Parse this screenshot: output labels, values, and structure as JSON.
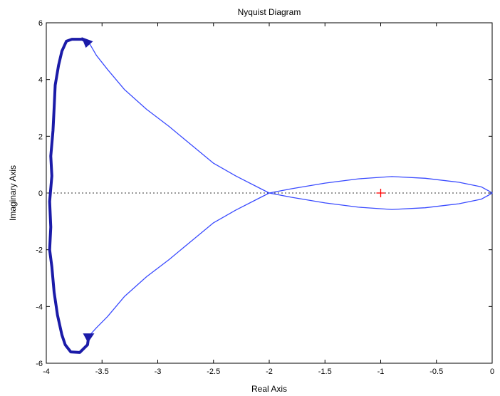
{
  "chart_data": {
    "type": "line",
    "title": "Nyquist Diagram",
    "xlabel": "Real Axis",
    "ylabel": "Imaginary Axis",
    "xlim": [
      -4,
      0
    ],
    "ylim": [
      -6,
      6
    ],
    "grid": false,
    "x_ticks": [
      -4,
      -3.5,
      -3,
      -2.5,
      -2,
      -1.5,
      -1,
      -0.5,
      0
    ],
    "x_tick_labels": [
      "-4",
      "-3.5",
      "-3",
      "-2.5",
      "-2",
      "-1.5",
      "-1",
      "-0.5",
      "0"
    ],
    "y_ticks": [
      -6,
      -4,
      -2,
      0,
      2,
      4,
      6
    ],
    "y_tick_labels": [
      "-6",
      "-4",
      "-2",
      "0",
      "2",
      "4",
      "6"
    ],
    "critical_point": {
      "x": -1,
      "y": 0,
      "color": "#ff0000"
    },
    "colors": {
      "nyquist": "#3a4bff",
      "closure": "#1b1ba8",
      "zero_line": "#333333"
    },
    "series": [
      {
        "values": [
          {
            "x": -3.62,
            "y": 5.32
          },
          {
            "x": -3.55,
            "y": 4.85
          },
          {
            "x": -3.45,
            "y": 4.35
          },
          {
            "x": -3.3,
            "y": 3.65
          },
          {
            "x": -3.1,
            "y": 2.95
          },
          {
            "x": -2.9,
            "y": 2.35
          },
          {
            "x": -2.7,
            "y": 1.7
          },
          {
            "x": -2.5,
            "y": 1.05
          },
          {
            "x": -2.3,
            "y": 0.6
          },
          {
            "x": -2.1,
            "y": 0.2
          },
          {
            "x": -2.0,
            "y": 0.0
          },
          {
            "x": -1.8,
            "y": -0.15
          },
          {
            "x": -1.5,
            "y": -0.35
          },
          {
            "x": -1.2,
            "y": -0.5
          },
          {
            "x": -0.9,
            "y": -0.58
          },
          {
            "x": -0.6,
            "y": -0.52
          },
          {
            "x": -0.3,
            "y": -0.38
          },
          {
            "x": -0.1,
            "y": -0.22
          },
          {
            "x": -0.02,
            "y": -0.05
          },
          {
            "x": 0.0,
            "y": 0.0
          }
        ]
      },
      {
        "values": [
          {
            "x": 0.0,
            "y": 0.0
          },
          {
            "x": -0.02,
            "y": 0.05
          },
          {
            "x": -0.1,
            "y": 0.22
          },
          {
            "x": -0.3,
            "y": 0.38
          },
          {
            "x": -0.6,
            "y": 0.52
          },
          {
            "x": -0.9,
            "y": 0.58
          },
          {
            "x": -1.2,
            "y": 0.5
          },
          {
            "x": -1.5,
            "y": 0.35
          },
          {
            "x": -1.8,
            "y": 0.15
          },
          {
            "x": -2.0,
            "y": 0.0
          },
          {
            "x": -2.1,
            "y": -0.2
          },
          {
            "x": -2.3,
            "y": -0.6
          },
          {
            "x": -2.5,
            "y": -1.05
          },
          {
            "x": -2.7,
            "y": -1.7
          },
          {
            "x": -2.9,
            "y": -2.35
          },
          {
            "x": -3.1,
            "y": -2.95
          },
          {
            "x": -3.3,
            "y": -3.65
          },
          {
            "x": -3.45,
            "y": -4.35
          },
          {
            "x": -3.55,
            "y": -4.75
          },
          {
            "x": -3.62,
            "y": -5.05
          }
        ]
      },
      {
        "values": [
          {
            "x": -3.62,
            "y": -5.05
          },
          {
            "x": -3.63,
            "y": -5.35
          },
          {
            "x": -3.7,
            "y": -5.62
          },
          {
            "x": -3.78,
            "y": -5.6
          },
          {
            "x": -3.83,
            "y": -5.35
          },
          {
            "x": -3.86,
            "y": -5.0
          },
          {
            "x": -3.9,
            "y": -4.3
          },
          {
            "x": -3.93,
            "y": -3.5
          },
          {
            "x": -3.95,
            "y": -2.6
          },
          {
            "x": -3.97,
            "y": -2.0
          },
          {
            "x": -3.96,
            "y": -1.2
          },
          {
            "x": -3.97,
            "y": -0.3
          },
          {
            "x": -3.95,
            "y": 0.6
          },
          {
            "x": -3.96,
            "y": 1.3
          },
          {
            "x": -3.94,
            "y": 2.2
          },
          {
            "x": -3.93,
            "y": 3.0
          },
          {
            "x": -3.92,
            "y": 3.8
          },
          {
            "x": -3.89,
            "y": 4.5
          },
          {
            "x": -3.86,
            "y": 5.0
          },
          {
            "x": -3.82,
            "y": 5.35
          },
          {
            "x": -3.77,
            "y": 5.42
          },
          {
            "x": -3.68,
            "y": 5.42
          },
          {
            "x": -3.62,
            "y": 5.32
          }
        ]
      }
    ]
  }
}
